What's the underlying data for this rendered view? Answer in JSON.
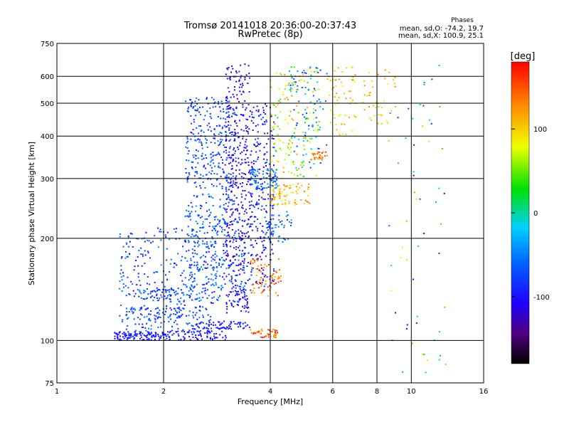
{
  "chart_data": {
    "type": "scatter",
    "title": "Tromsø 20141018 20:36:00-20:37:43",
    "subtitle": "RwPretec (8p)",
    "xlabel": "Frequency [MHz]",
    "ylabel": "Stationary phase Virtual Height [km]",
    "x_scale": "log",
    "y_scale": "log",
    "xlim": [
      1,
      16
    ],
    "ylim": [
      75,
      750
    ],
    "x_ticks": [
      1,
      2,
      4,
      6,
      8,
      10,
      16
    ],
    "y_ticks": [
      75,
      100,
      200,
      300,
      400,
      500,
      600,
      750
    ],
    "grid": true,
    "stats": {
      "heading": "Phases",
      "line1": "mean, sd,O: -74.2, 19.7",
      "line2": "mean, sd,X: 100.9, 25.1"
    },
    "colorbar": {
      "label": "[deg]",
      "range": [
        -180,
        180
      ],
      "ticks": [
        100,
        0,
        -100
      ]
    },
    "clusters": [
      {
        "f": [
          1.45,
          2.05
        ],
        "h": [
          100,
          106
        ],
        "phase": [
          -110,
          -80
        ],
        "n": 120
      },
      {
        "f": [
          1.55,
          2.3
        ],
        "h": [
          115,
          125
        ],
        "phase": [
          -90,
          -60
        ],
        "n": 70
      },
      {
        "f": [
          1.7,
          2.5
        ],
        "h": [
          130,
          142
        ],
        "phase": [
          -95,
          -55
        ],
        "n": 70
      },
      {
        "f": [
          1.5,
          2.8
        ],
        "h": [
          106,
          215
        ],
        "phase": [
          -110,
          -40
        ],
        "n": 320
      },
      {
        "f": [
          2.05,
          3.0
        ],
        "h": [
          100,
          107
        ],
        "phase": [
          -110,
          -85
        ],
        "n": 80
      },
      {
        "f": [
          2.4,
          3.5
        ],
        "h": [
          108,
          114
        ],
        "phase": [
          -110,
          -80
        ],
        "n": 70
      },
      {
        "f": [
          2.3,
          3.4
        ],
        "h": [
          130,
          270
        ],
        "phase": [
          -100,
          -40
        ],
        "n": 350
      },
      {
        "f": [
          2.3,
          3.2
        ],
        "h": [
          280,
          520
        ],
        "phase": [
          -100,
          -50
        ],
        "n": 300
      },
      {
        "f": [
          3.0,
          3.5
        ],
        "h": [
          120,
          660
        ],
        "phase": [
          -130,
          -90
        ],
        "n": 380
      },
      {
        "f": [
          3.5,
          4.1
        ],
        "h": [
          140,
          500
        ],
        "phase": [
          -130,
          -70
        ],
        "n": 260
      },
      {
        "f": [
          3.5,
          4.2
        ],
        "h": [
          280,
          320
        ],
        "phase": [
          -80,
          -30
        ],
        "n": 80
      },
      {
        "f": [
          3.5,
          4.2
        ],
        "h": [
          102,
          108
        ],
        "phase": [
          115,
          175
        ],
        "n": 45
      },
      {
        "f": [
          3.5,
          4.3
        ],
        "h": [
          135,
          175
        ],
        "phase": [
          110,
          165
        ],
        "n": 70
      },
      {
        "f": [
          3.8,
          4.6
        ],
        "h": [
          195,
          240
        ],
        "phase": [
          -90,
          -30
        ],
        "n": 50
      },
      {
        "f": [
          4.0,
          5.2
        ],
        "h": [
          250,
          290
        ],
        "phase": [
          80,
          140
        ],
        "n": 80
      },
      {
        "f": [
          4.0,
          5.5
        ],
        "h": [
          300,
          650
        ],
        "phase": [
          20,
          130
        ],
        "n": 150
      },
      {
        "f": [
          4.5,
          5.8
        ],
        "h": [
          320,
          640
        ],
        "phase": [
          -110,
          0
        ],
        "n": 80
      },
      {
        "f": [
          5.2,
          5.8
        ],
        "h": [
          340,
          360
        ],
        "phase": [
          120,
          160
        ],
        "n": 25
      },
      {
        "f": [
          5.8,
          7.0
        ],
        "h": [
          400,
          640
        ],
        "phase": [
          60,
          130
        ],
        "n": 60
      },
      {
        "f": [
          7.3,
          9.0
        ],
        "h": [
          430,
          640
        ],
        "phase": [
          60,
          130
        ],
        "n": 40
      },
      {
        "f": [
          8.5,
          12.5
        ],
        "h": [
          80,
          650
        ],
        "phase": [
          -140,
          140
        ],
        "n": 60
      }
    ]
  }
}
